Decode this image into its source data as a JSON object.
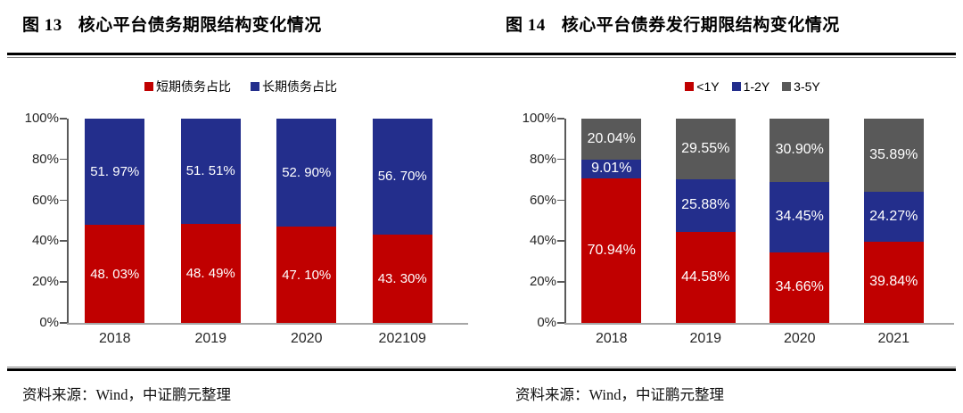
{
  "chart_data": [
    {
      "type": "bar",
      "stacked": true,
      "title": "图 13 核心平台债务期限结构变化情况",
      "title_label": "图 13",
      "title_text": "核心平台债务期限结构变化情况",
      "source_note": "资料来源：Wind，中证鹏元整理",
      "categories": [
        "2018",
        "2019",
        "2020",
        "202109"
      ],
      "series": [
        {
          "name": "短期债务占比",
          "color": "#C00000",
          "values": [
            48.03,
            48.49,
            47.1,
            43.3
          ],
          "labels": [
            "48. 03%",
            "48. 49%",
            "47. 10%",
            "43. 30%"
          ]
        },
        {
          "name": "长期债务占比",
          "color": "#232E8C",
          "values": [
            51.97,
            51.51,
            52.9,
            56.7
          ],
          "labels": [
            "51. 97%",
            "51. 51%",
            "52. 90%",
            "56. 70%"
          ]
        }
      ],
      "ylim": [
        0,
        100
      ],
      "yticks": [
        "0%",
        "20%",
        "40%",
        "60%",
        "80%",
        "100%"
      ],
      "legend_position": "top-center",
      "grid": false,
      "bar_label_color": "#FFFFFF"
    },
    {
      "type": "bar",
      "stacked": true,
      "title": "图 14 核心平台债券发行期限结构变化情况",
      "title_label": "图 14",
      "title_text": "核心平台债券发行期限结构变化情况",
      "source_note": "资料来源：Wind，中证鹏元整理",
      "categories": [
        "2018",
        "2019",
        "2020",
        "2021"
      ],
      "series": [
        {
          "name": "<1Y",
          "color": "#C00000",
          "values": [
            70.94,
            44.58,
            34.66,
            39.84
          ],
          "labels": [
            "70.94%",
            "44.58%",
            "34.66%",
            "39.84%"
          ]
        },
        {
          "name": "1-2Y",
          "color": "#232E8C",
          "values": [
            9.01,
            25.88,
            34.45,
            24.27
          ],
          "labels": [
            "9.01%",
            "25.88%",
            "34.45%",
            "24.27%"
          ]
        },
        {
          "name": "3-5Y",
          "color": "#595959",
          "values": [
            20.04,
            29.55,
            30.9,
            35.89
          ],
          "labels": [
            "20.04%",
            "29.55%",
            "30.90%",
            "35.89%"
          ]
        }
      ],
      "ylim": [
        0,
        100
      ],
      "yticks": [
        "0%",
        "20%",
        "40%",
        "60%",
        "80%",
        "100%"
      ],
      "legend_position": "top-center",
      "grid": false,
      "bar_label_color": "#FFFFFF"
    }
  ]
}
